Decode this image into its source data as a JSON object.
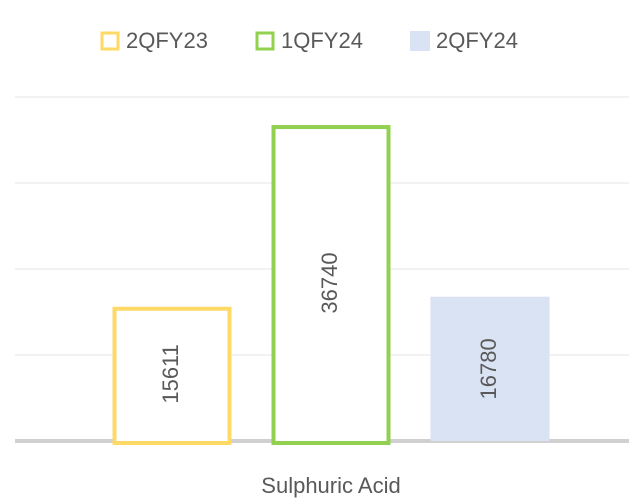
{
  "chart_data": {
    "type": "bar",
    "categories": [
      "Sulphuric Acid"
    ],
    "series": [
      {
        "name": "2QFY23",
        "color": "#ffd966",
        "outline": true,
        "values": [
          15611
        ]
      },
      {
        "name": "1QFY24",
        "color": "#92d050",
        "outline": true,
        "values": [
          36740
        ]
      },
      {
        "name": "2QFY24",
        "color": "#dae3f3",
        "outline": false,
        "values": [
          16780
        ]
      }
    ],
    "ylim": [
      0,
      40000
    ],
    "yticks": [
      0,
      10000,
      20000,
      30000,
      40000
    ],
    "grid": true,
    "legend": "top"
  }
}
